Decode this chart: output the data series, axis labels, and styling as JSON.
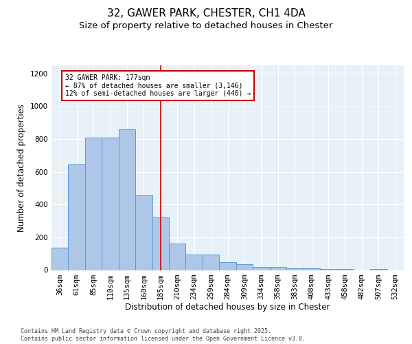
{
  "title_line1": "32, GAWER PARK, CHESTER, CH1 4DA",
  "title_line2": "Size of property relative to detached houses in Chester",
  "xlabel": "Distribution of detached houses by size in Chester",
  "ylabel": "Number of detached properties",
  "bar_labels": [
    "36sqm",
    "61sqm",
    "85sqm",
    "110sqm",
    "135sqm",
    "160sqm",
    "185sqm",
    "210sqm",
    "234sqm",
    "259sqm",
    "284sqm",
    "309sqm",
    "334sqm",
    "358sqm",
    "383sqm",
    "408sqm",
    "433sqm",
    "458sqm",
    "482sqm",
    "507sqm",
    "532sqm"
  ],
  "bar_values": [
    135,
    645,
    810,
    810,
    860,
    455,
    320,
    160,
    95,
    95,
    50,
    35,
    20,
    20,
    12,
    12,
    5,
    5,
    0,
    5,
    0
  ],
  "bar_color": "#aec6e8",
  "bar_edge_color": "#5b9bd5",
  "vline_x": 6.0,
  "vline_color": "#cc0000",
  "annotation_text": "32 GAWER PARK: 177sqm\n← 87% of detached houses are smaller (3,146)\n12% of semi-detached houses are larger (440) →",
  "annotation_box_color": "#cc0000",
  "ylim": [
    0,
    1250
  ],
  "yticks": [
    0,
    200,
    400,
    600,
    800,
    1000,
    1200
  ],
  "bg_color": "#e8f0f8",
  "footnote": "Contains HM Land Registry data © Crown copyright and database right 2025.\nContains public sector information licensed under the Open Government Licence v3.0.",
  "title_fontsize": 11,
  "subtitle_fontsize": 9.5,
  "axis_label_fontsize": 8.5,
  "tick_fontsize": 7.5,
  "annot_fontsize": 7,
  "footnote_fontsize": 6
}
